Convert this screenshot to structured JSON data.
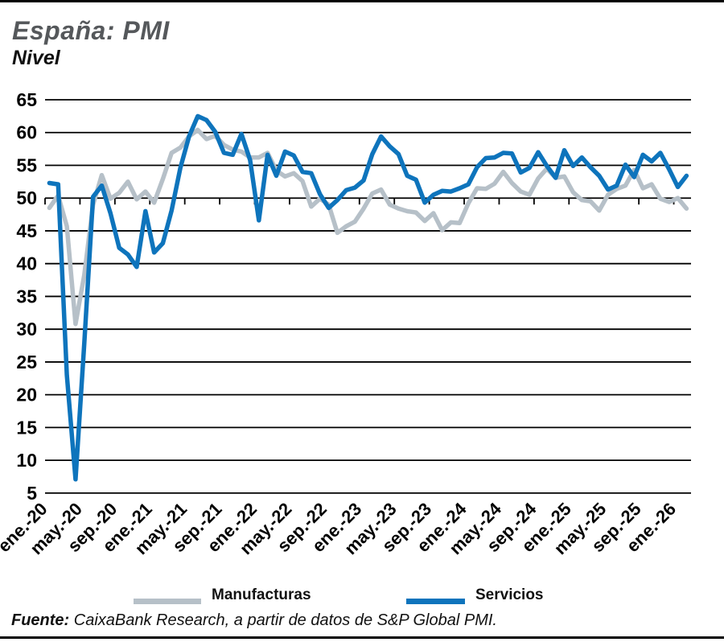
{
  "header": {
    "title": "España: PMI",
    "subtitle": "Nivel"
  },
  "legend": {
    "items": [
      {
        "label": "Manufacturas",
        "color": "#B6C0C8"
      },
      {
        "label": "Servicios",
        "color": "#0E74BC"
      }
    ]
  },
  "source": {
    "prefix": "Fuente:",
    "text": " CaixaBank Research, a partir de datos de S&P Global PMI."
  },
  "chart_data": {
    "type": "line",
    "title": "España: PMI",
    "subtitle": "Nivel",
    "x_frequency": "monthly",
    "x_range": [
      "ene.-20",
      "feb.-26"
    ],
    "x_tick_labels": [
      "ene.-20",
      "may.-20",
      "sep.-20",
      "ene.-21",
      "may.-21",
      "sep.-21",
      "ene.-22",
      "may.-22",
      "sep.-22",
      "ene.-23",
      "may.-23",
      "sep.-23",
      "ene.-24",
      "may.-24",
      "sep.-24",
      "ene.-25",
      "may.-25",
      "sep.-25",
      "ene.-26"
    ],
    "ylim": [
      5,
      65
    ],
    "yticks": [
      65,
      60,
      55,
      50,
      45,
      40,
      35,
      30,
      25,
      20,
      15,
      10,
      5
    ],
    "grid": "horizontal",
    "axis_cross_y": 50,
    "legend_position": "bottom",
    "series": [
      {
        "name": "Manufacturas",
        "color": "#B6C0C8",
        "values": [
          48.5,
          50.4,
          45.7,
          30.8,
          38.3,
          49.0,
          53.5,
          49.9,
          50.8,
          52.5,
          49.8,
          51.0,
          49.3,
          52.9,
          56.9,
          57.7,
          59.4,
          60.4,
          59.0,
          59.5,
          58.1,
          57.4,
          57.1,
          56.2,
          56.2,
          56.9,
          54.2,
          53.3,
          53.8,
          52.6,
          48.7,
          49.9,
          49.0,
          44.7,
          45.7,
          46.4,
          48.4,
          50.7,
          51.3,
          49.0,
          48.4,
          48.0,
          47.8,
          46.5,
          47.7,
          45.1,
          46.3,
          46.2,
          49.2,
          51.5,
          51.4,
          52.2,
          54.0,
          52.3,
          51.0,
          50.5,
          53.0,
          54.5,
          53.1,
          53.3,
          50.9,
          49.7,
          49.5,
          48.1,
          50.5,
          51.4,
          51.9,
          54.3,
          51.5,
          52.1,
          49.9,
          49.4,
          50.0,
          48.4
        ]
      },
      {
        "name": "Servicios",
        "color": "#0E74BC",
        "values": [
          52.3,
          52.1,
          23.0,
          7.1,
          27.9,
          50.2,
          51.9,
          47.7,
          42.4,
          41.4,
          39.5,
          48.0,
          41.7,
          43.1,
          48.1,
          54.6,
          59.4,
          62.5,
          61.9,
          60.1,
          56.9,
          56.6,
          59.8,
          55.8,
          46.6,
          56.6,
          53.4,
          57.1,
          56.5,
          54.0,
          53.8,
          50.6,
          48.5,
          49.7,
          51.2,
          51.6,
          52.7,
          56.7,
          59.4,
          57.9,
          56.7,
          53.4,
          52.8,
          49.3,
          50.5,
          51.1,
          51.0,
          51.5,
          52.1,
          54.7,
          56.1,
          56.2,
          56.9,
          56.8,
          53.9,
          54.6,
          57.0,
          54.9,
          53.1,
          57.3,
          54.9,
          56.2,
          54.7,
          53.4,
          51.3,
          51.9,
          55.1,
          53.2,
          56.6,
          55.6,
          56.9,
          54.4,
          51.7,
          53.4
        ]
      }
    ]
  }
}
